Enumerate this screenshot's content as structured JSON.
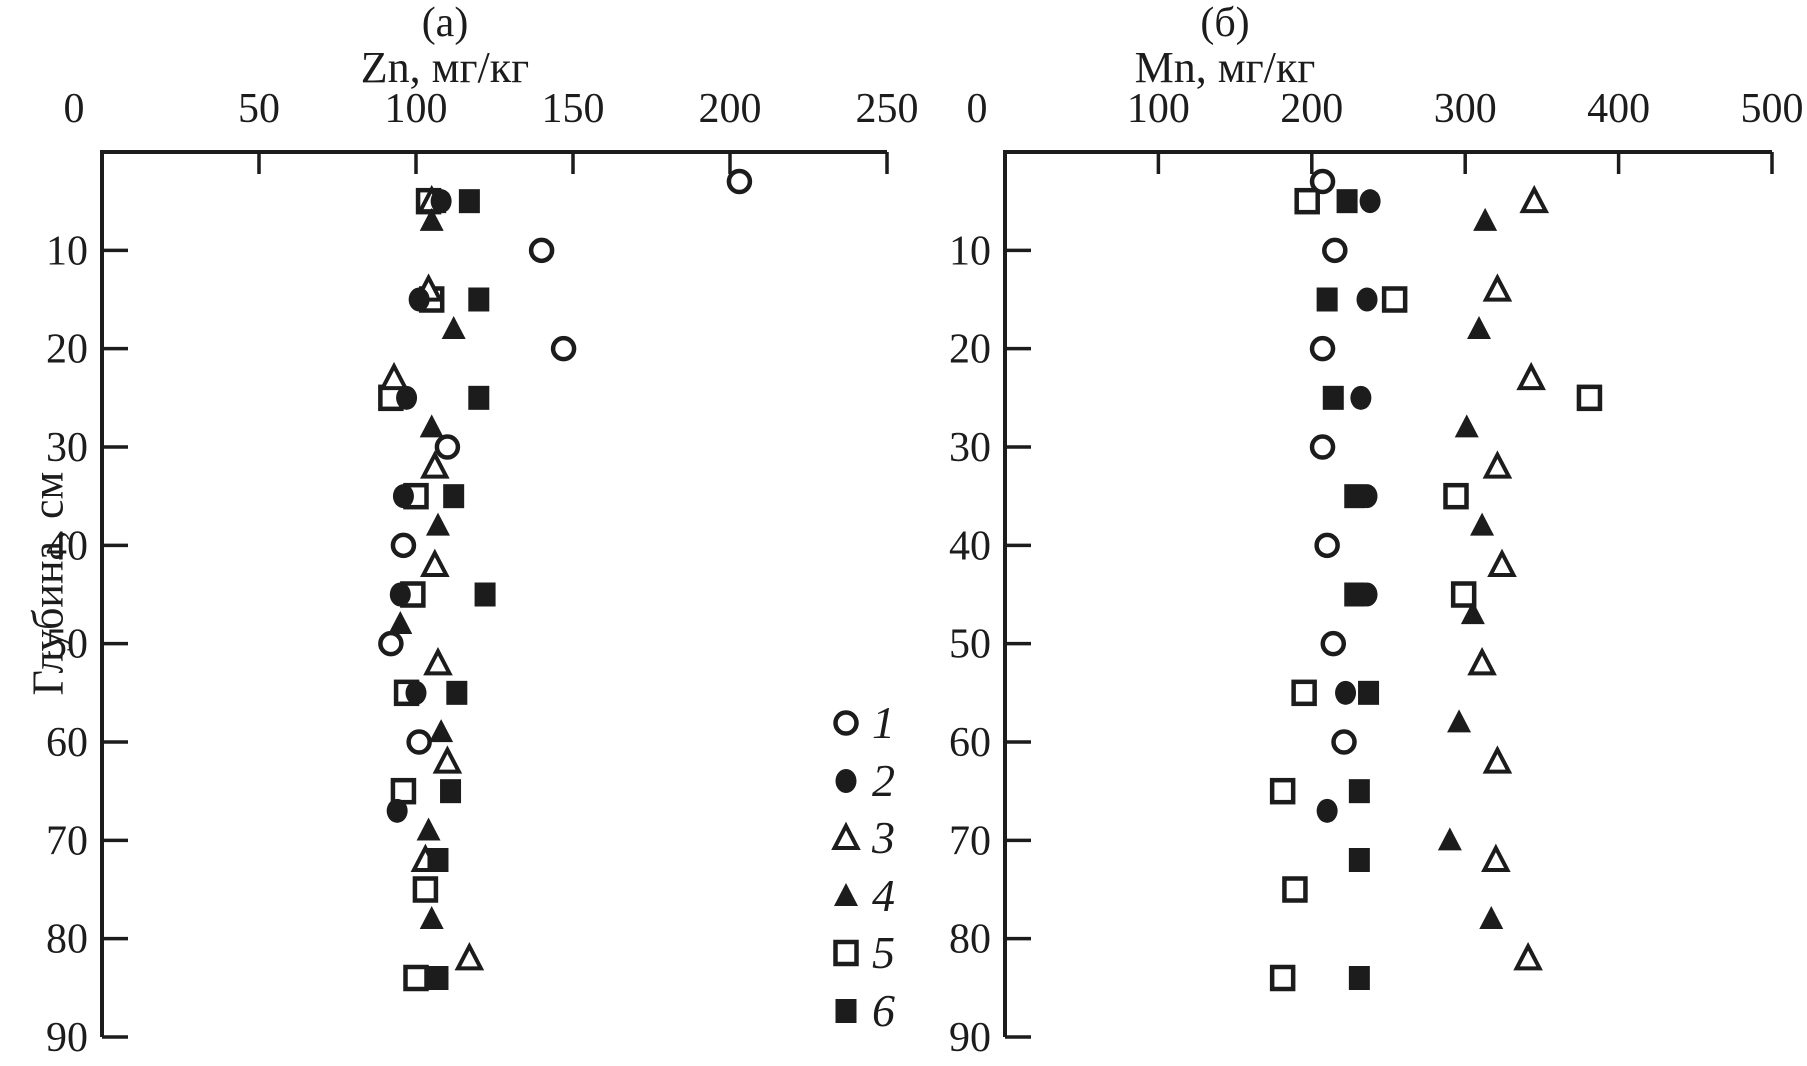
{
  "figure": {
    "panel_a_tag": "(a)",
    "panel_b_tag": "(б)",
    "panel_a_axis_title": "Zn, мг/кг",
    "panel_b_axis_title": "Mn, мг/кг",
    "depth_axis_title": "Глубина, см"
  },
  "legend": {
    "items": [
      {
        "label": "1",
        "marker": "circle-open"
      },
      {
        "label": "2",
        "marker": "circle-filled"
      },
      {
        "label": "3",
        "marker": "triangle-open"
      },
      {
        "label": "4",
        "marker": "triangle-filled"
      },
      {
        "label": "5",
        "marker": "square-open"
      },
      {
        "label": "6",
        "marker": "square-filled"
      }
    ]
  },
  "chart_data": [
    {
      "id": "a",
      "type": "scatter",
      "title": "(a)",
      "xlabel": "Zn, мг/кг",
      "ylabel": "Глубина, см",
      "xlim": [
        0,
        250
      ],
      "xticks": [
        0,
        50,
        100,
        150,
        200,
        250
      ],
      "ylim": [
        0,
        90
      ],
      "yticks": [
        10,
        20,
        30,
        40,
        50,
        60,
        70,
        80,
        90
      ],
      "grid": false,
      "series": [
        {
          "name": "1",
          "marker": "circle-open",
          "points": [
            [
              203,
              3
            ],
            [
              140,
              10
            ],
            [
              147,
              20
            ],
            [
              110,
              30
            ],
            [
              96,
              40
            ],
            [
              92,
              50
            ],
            [
              101,
              60
            ]
          ]
        },
        {
          "name": "2",
          "marker": "circle-filled",
          "points": [
            [
              108,
              5
            ],
            [
              101,
              15
            ],
            [
              97,
              25
            ],
            [
              96,
              35
            ],
            [
              95,
              45
            ],
            [
              100,
              55
            ],
            [
              94,
              67
            ]
          ]
        },
        {
          "name": "3",
          "marker": "triangle-open",
          "points": [
            [
              105,
              5
            ],
            [
              104,
              14
            ],
            [
              93,
              23
            ],
            [
              106,
              32
            ],
            [
              106,
              42
            ],
            [
              107,
              52
            ],
            [
              110,
              62
            ],
            [
              103,
              72
            ],
            [
              117,
              82
            ]
          ]
        },
        {
          "name": "4",
          "marker": "triangle-filled",
          "points": [
            [
              105,
              7
            ],
            [
              112,
              18
            ],
            [
              105,
              28
            ],
            [
              107,
              38
            ],
            [
              95,
              48
            ],
            [
              108,
              59
            ],
            [
              104,
              69
            ],
            [
              105,
              78
            ]
          ]
        },
        {
          "name": "5",
          "marker": "square-open",
          "points": [
            [
              104,
              5
            ],
            [
              105,
              15
            ],
            [
              92,
              25
            ],
            [
              100,
              35
            ],
            [
              99,
              45
            ],
            [
              97,
              55
            ],
            [
              96,
              65
            ],
            [
              103,
              75
            ],
            [
              100,
              84
            ]
          ]
        },
        {
          "name": "6",
          "marker": "square-filled",
          "points": [
            [
              117,
              5
            ],
            [
              120,
              15
            ],
            [
              120,
              25
            ],
            [
              112,
              35
            ],
            [
              122,
              45
            ],
            [
              113,
              55
            ],
            [
              111,
              65
            ],
            [
              107,
              72
            ],
            [
              107,
              84
            ]
          ]
        }
      ]
    },
    {
      "id": "b",
      "type": "scatter",
      "title": "(б)",
      "xlabel": "Mn, мг/кг",
      "ylabel": "Глубина, см",
      "xlim": [
        0,
        500
      ],
      "xticks": [
        0,
        100,
        200,
        300,
        400,
        500
      ],
      "ylim": [
        0,
        90
      ],
      "yticks": [
        10,
        20,
        30,
        40,
        50,
        60,
        70,
        80,
        90
      ],
      "grid": false,
      "series": [
        {
          "name": "1",
          "marker": "circle-open",
          "points": [
            [
              207,
              3
            ],
            [
              215,
              10
            ],
            [
              207,
              20
            ],
            [
              207,
              30
            ],
            [
              210,
              40
            ],
            [
              214,
              50
            ],
            [
              221,
              60
            ]
          ]
        },
        {
          "name": "2",
          "marker": "circle-filled",
          "points": [
            [
              238,
              5
            ],
            [
              236,
              15
            ],
            [
              232,
              25
            ],
            [
              236,
              35
            ],
            [
              236,
              45
            ],
            [
              222,
              55
            ],
            [
              210,
              67
            ]
          ]
        },
        {
          "name": "3",
          "marker": "triangle-open",
          "points": [
            [
              345,
              5
            ],
            [
              321,
              14
            ],
            [
              343,
              23
            ],
            [
              321,
              32
            ],
            [
              324,
              42
            ],
            [
              311,
              52
            ],
            [
              321,
              62
            ],
            [
              320,
              72
            ],
            [
              341,
              82
            ]
          ]
        },
        {
          "name": "4",
          "marker": "triangle-filled",
          "points": [
            [
              313,
              7
            ],
            [
              309,
              18
            ],
            [
              301,
              28
            ],
            [
              311,
              38
            ],
            [
              305,
              47
            ],
            [
              296,
              58
            ],
            [
              290,
              70
            ],
            [
              317,
              78
            ]
          ]
        },
        {
          "name": "5",
          "marker": "square-open",
          "points": [
            [
              197,
              5
            ],
            [
              254,
              15
            ],
            [
              381,
              25
            ],
            [
              294,
              35
            ],
            [
              299,
              45
            ],
            [
              195,
              55
            ],
            [
              181,
              65
            ],
            [
              189,
              75
            ],
            [
              181,
              84
            ]
          ]
        },
        {
          "name": "6",
          "marker": "square-filled",
          "points": [
            [
              223,
              5
            ],
            [
              210,
              15
            ],
            [
              214,
              25
            ],
            [
              228,
              35
            ],
            [
              228,
              45
            ],
            [
              237,
              55
            ],
            [
              231,
              65
            ],
            [
              231,
              72
            ],
            [
              231,
              84
            ]
          ]
        }
      ]
    }
  ]
}
